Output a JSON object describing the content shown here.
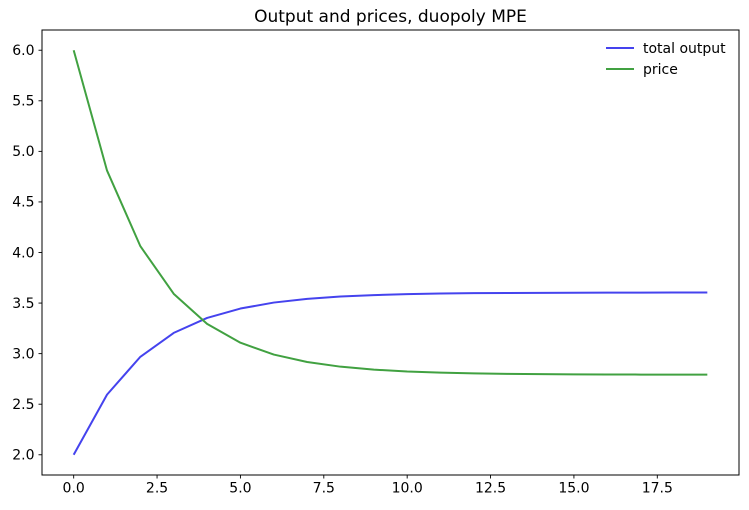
{
  "figure": {
    "background": "#ffffff",
    "axis_color": "#000000"
  },
  "chart_data": {
    "type": "line",
    "title": "Output and prices, duopoly MPE",
    "xlabel": "",
    "ylabel": "",
    "grid": false,
    "legend_position": "upper right",
    "legend_frame": false,
    "xlim": [
      -0.95,
      19.95
    ],
    "ylim": [
      1.8,
      6.2
    ],
    "x_ticks": [
      0.0,
      2.5,
      5.0,
      7.5,
      10.0,
      12.5,
      15.0,
      17.5
    ],
    "x_tick_labels": [
      "0.0",
      "2.5",
      "5.0",
      "7.5",
      "10.0",
      "12.5",
      "15.0",
      "17.5"
    ],
    "y_ticks": [
      2.0,
      2.5,
      3.0,
      3.5,
      4.0,
      4.5,
      5.0,
      5.5,
      6.0
    ],
    "y_tick_labels": [
      "2.0",
      "2.5",
      "3.0",
      "3.5",
      "4.0",
      "4.5",
      "5.0",
      "5.5",
      "6.0"
    ],
    "x": [
      0,
      1,
      2,
      3,
      4,
      5,
      6,
      7,
      8,
      9,
      10,
      11,
      12,
      13,
      14,
      15,
      16,
      17,
      18,
      19
    ],
    "series": [
      {
        "name": "total output",
        "color": "#4543ee",
        "line_width": 2,
        "values": [
          2.0,
          2.595,
          2.969,
          3.205,
          3.353,
          3.446,
          3.505,
          3.541,
          3.565,
          3.579,
          3.588,
          3.594,
          3.598,
          3.6,
          3.601,
          3.602,
          3.603,
          3.603,
          3.604,
          3.604
        ]
      },
      {
        "name": "price",
        "color": "#41a141",
        "line_width": 2,
        "values": [
          6.0,
          4.81,
          4.062,
          3.591,
          3.294,
          3.108,
          2.991,
          2.917,
          2.871,
          2.842,
          2.823,
          2.812,
          2.805,
          2.8,
          2.797,
          2.795,
          2.794,
          2.793,
          2.793,
          2.793
        ]
      }
    ]
  }
}
